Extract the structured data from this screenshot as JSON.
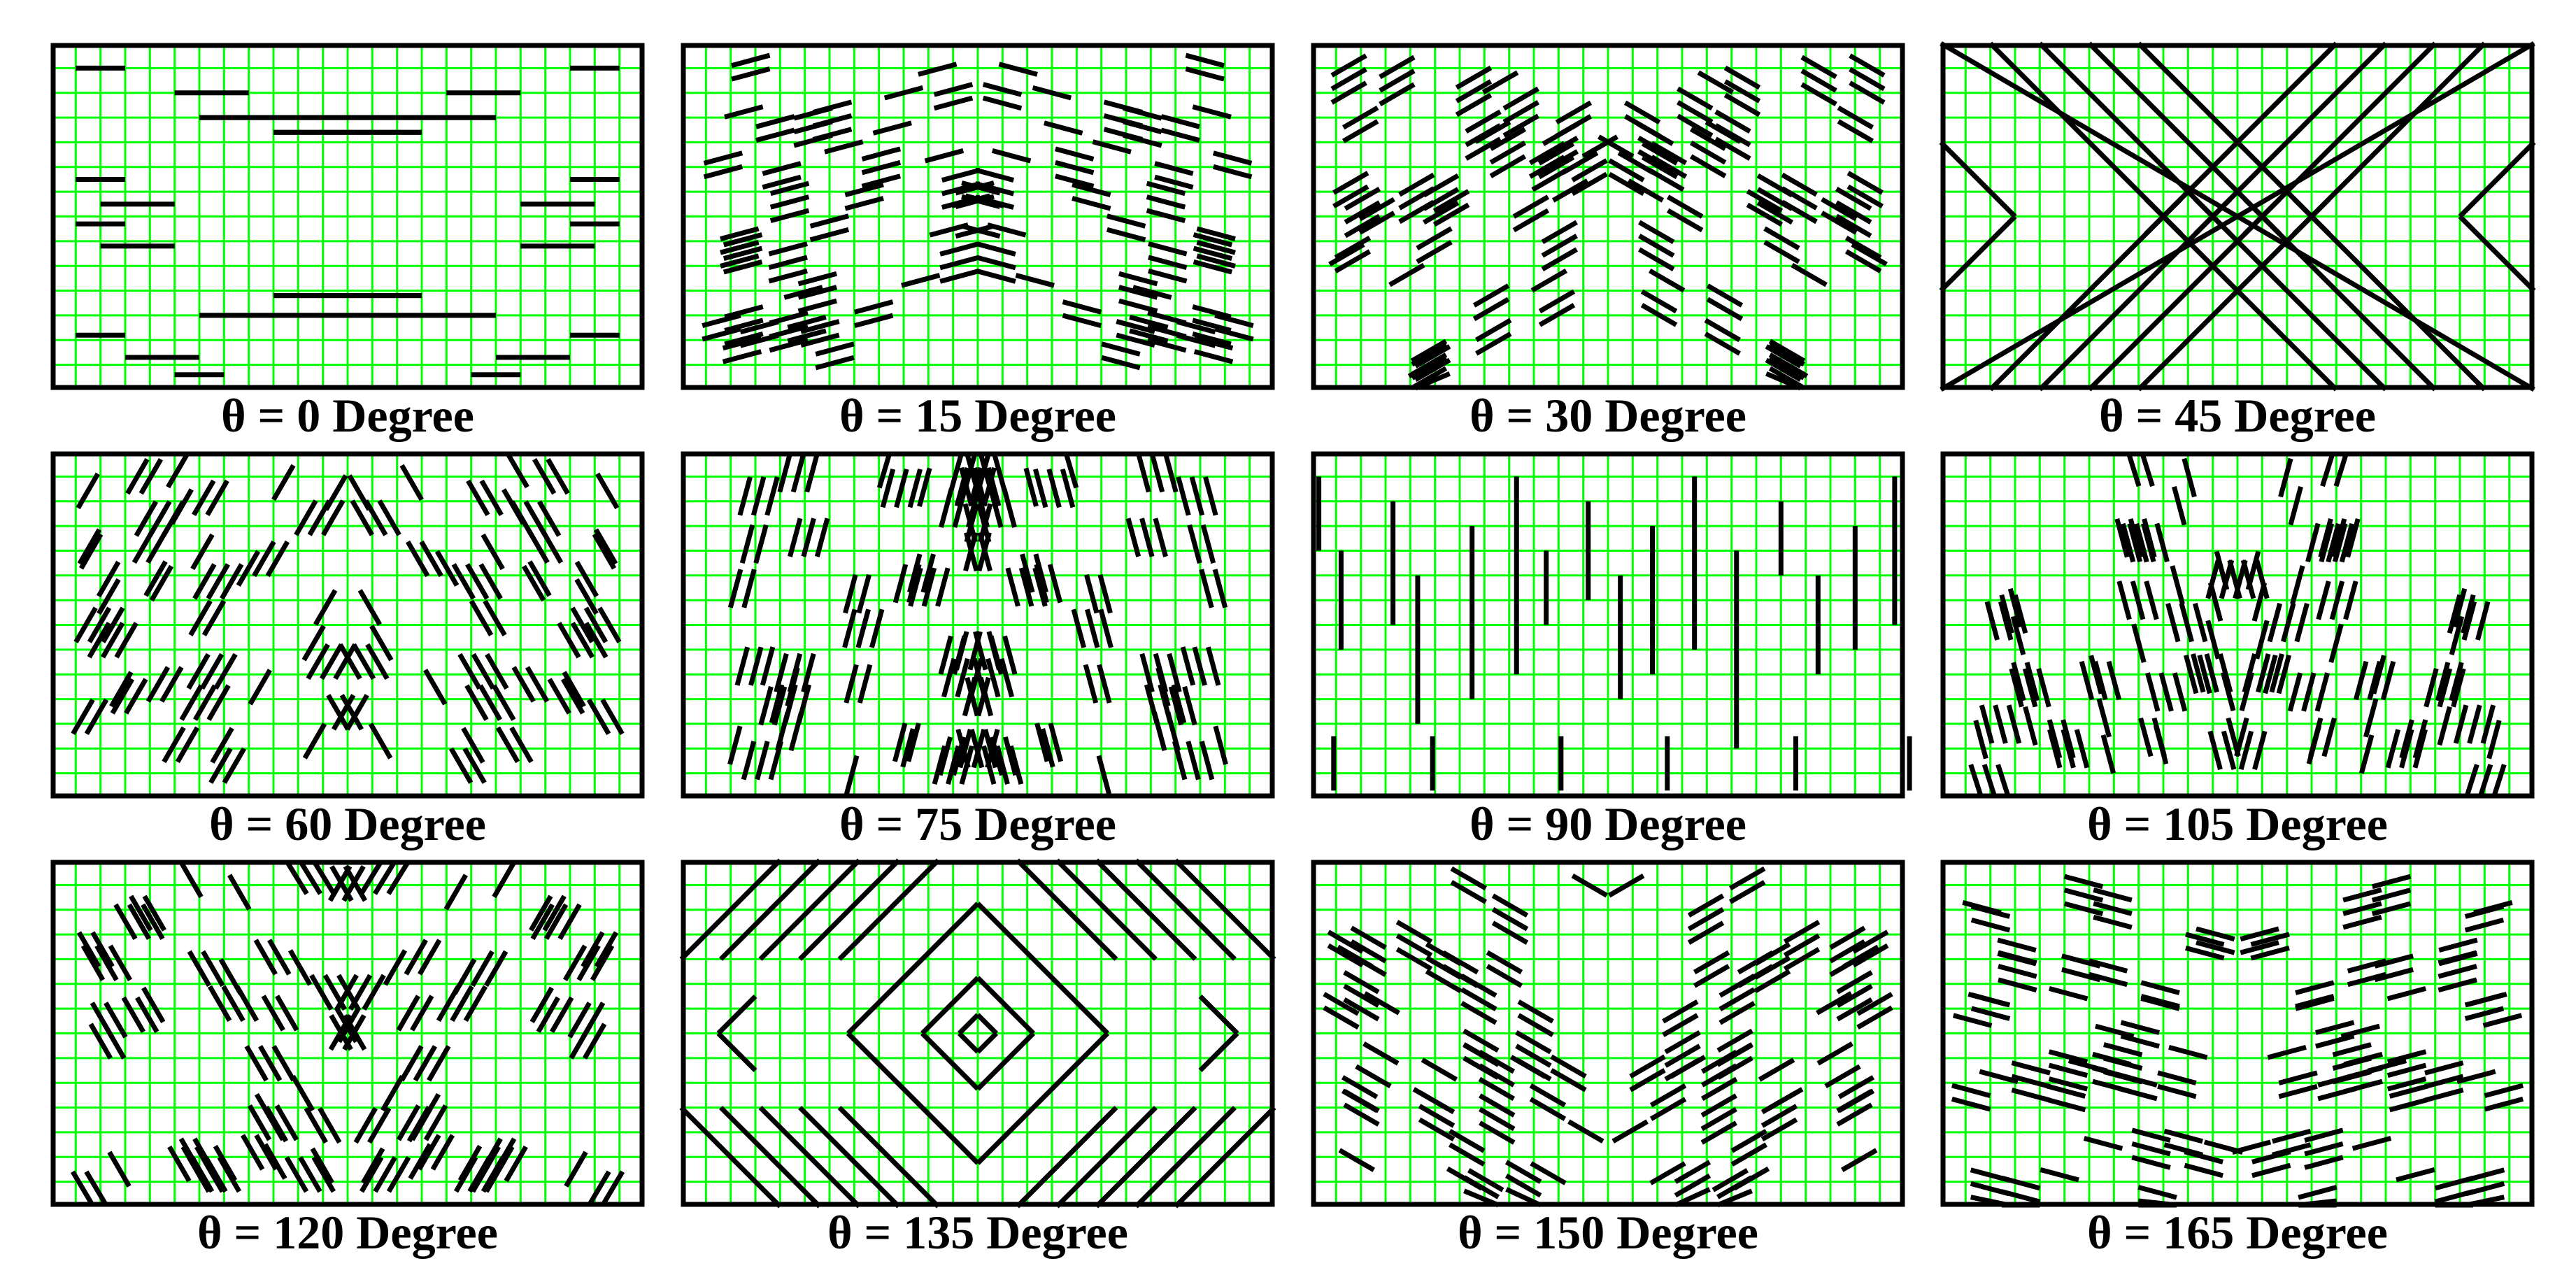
{
  "figure": {
    "background": "#ffffff",
    "grid_color": "#00ff00",
    "stroke_color": "#000000",
    "grid_columns": 24,
    "grid_rows": 14,
    "panels": [
      {
        "theta": 0,
        "caption": "θ = 0 Degree"
      },
      {
        "theta": 15,
        "caption": "θ = 15 Degree"
      },
      {
        "theta": 30,
        "caption": "θ = 30 Degree"
      },
      {
        "theta": 45,
        "caption": "θ = 45 Degree"
      },
      {
        "theta": 60,
        "caption": "θ = 60 Degree"
      },
      {
        "theta": 75,
        "caption": "θ = 75 Degree"
      },
      {
        "theta": 90,
        "caption": "θ = 90 Degree"
      },
      {
        "theta": 105,
        "caption": "θ = 105 Degree"
      },
      {
        "theta": 120,
        "caption": "θ = 120 Degree"
      },
      {
        "theta": 135,
        "caption": "θ = 135 Degree"
      },
      {
        "theta": 150,
        "caption": "θ = 150 Degree"
      },
      {
        "theta": 165,
        "caption": "θ = 165 Degree"
      }
    ]
  }
}
